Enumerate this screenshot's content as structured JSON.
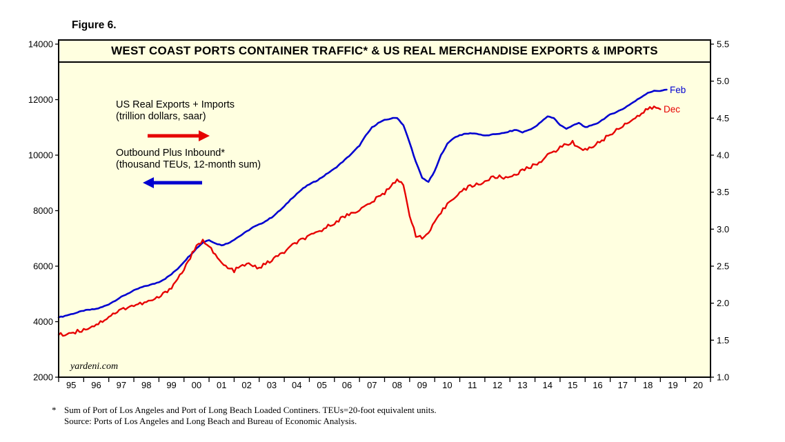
{
  "figure_label": "Figure 6.",
  "title": "WEST COAST PORTS CONTAINER TRAFFIC* & US REAL MERCHANDISE EXPORTS & IMPORTS",
  "watermark": "yardeni.com",
  "annotations": {
    "red_series_label_line1": "US Real Exports + Imports",
    "red_series_label_line2": "(trillion dollars, saar)",
    "blue_series_label_line1": "Outbound Plus Inbound*",
    "blue_series_label_line2": "(thousand TEUs, 12-month sum)",
    "blue_end_label": "Feb",
    "red_end_label": "Dec"
  },
  "footnotes": {
    "asterisk": "*",
    "line1": "Sum of Port of Los Angeles and Port of Long Beach Loaded Continers. TEUs=20-foot equivalent units.",
    "line2": "Source: Ports of Los Angeles and Long Beach and Bureau of Economic Analysis."
  },
  "colors": {
    "blue": "#0000D0",
    "red": "#E60000",
    "plot_bg": "#FFFFE0",
    "border": "#000000"
  },
  "chart_data": {
    "type": "line",
    "title": "WEST COAST PORTS CONTAINER TRAFFIC* & US REAL MERCHANDISE EXPORTS & IMPORTS",
    "grid": false,
    "x_axis": {
      "range": [
        1995,
        2021
      ],
      "tick_labels": [
        "95",
        "96",
        "97",
        "98",
        "99",
        "00",
        "01",
        "02",
        "03",
        "04",
        "05",
        "06",
        "07",
        "08",
        "09",
        "10",
        "11",
        "12",
        "13",
        "14",
        "15",
        "16",
        "17",
        "18",
        "19",
        "20"
      ]
    },
    "left_axis": {
      "label": "Outbound Plus Inbound (thousand TEUs, 12-month sum)",
      "range": [
        2000,
        14000
      ],
      "tick_labels": [
        "14000",
        "12000",
        "10000",
        "8000",
        "6000",
        "4000",
        "2000"
      ]
    },
    "right_axis": {
      "label": "US Real Exports + Imports (trillion dollars, saar)",
      "range": [
        1.0,
        5.5
      ],
      "tick_labels": [
        "5.5",
        "5.0",
        "4.5",
        "4.0",
        "3.5",
        "3.0",
        "2.5",
        "2.0",
        "1.5",
        "1.0"
      ]
    },
    "series": [
      {
        "name": "Outbound Plus Inbound* (thousand TEUs, 12-month sum)",
        "axis": "left",
        "color_key": "blue",
        "end_label": "Feb",
        "x_start": 1995.0,
        "x_step": 0.25,
        "values": [
          4150,
          4210,
          4270,
          4330,
          4400,
          4430,
          4460,
          4530,
          4630,
          4760,
          4890,
          5010,
          5120,
          5220,
          5290,
          5350,
          5430,
          5550,
          5710,
          5910,
          6160,
          6400,
          6640,
          6850,
          6950,
          6820,
          6760,
          6820,
          6960,
          7100,
          7250,
          7400,
          7500,
          7620,
          7760,
          7950,
          8150,
          8400,
          8610,
          8800,
          8950,
          9060,
          9200,
          9360,
          9510,
          9700,
          9900,
          10110,
          10350,
          10700,
          11000,
          11160,
          11260,
          11320,
          11350,
          11080,
          10450,
          9750,
          9180,
          9040,
          9420,
          10000,
          10400,
          10620,
          10720,
          10770,
          10790,
          10760,
          10700,
          10730,
          10770,
          10790,
          10860,
          10910,
          10820,
          10910,
          11010,
          11200,
          11400,
          11340,
          11080,
          10960,
          11060,
          11160,
          11010,
          11060,
          11160,
          11310,
          11460,
          11560,
          11660,
          11810,
          11950,
          12100,
          12250,
          12310,
          12320,
          12360
        ]
      },
      {
        "name": "US Real Exports + Imports (trillion dollars, saar)",
        "axis": "right",
        "color_key": "red",
        "end_label": "Dec",
        "x_start": 1995.0,
        "x_step": 0.25,
        "values": [
          1.57,
          1.58,
          1.6,
          1.62,
          1.64,
          1.68,
          1.71,
          1.76,
          1.82,
          1.87,
          1.91,
          1.95,
          1.97,
          1.99,
          2.01,
          2.04,
          2.08,
          2.14,
          2.22,
          2.33,
          2.46,
          2.62,
          2.76,
          2.84,
          2.79,
          2.64,
          2.54,
          2.47,
          2.44,
          2.49,
          2.53,
          2.5,
          2.48,
          2.53,
          2.58,
          2.64,
          2.69,
          2.76,
          2.82,
          2.87,
          2.9,
          2.94,
          2.99,
          3.04,
          3.09,
          3.14,
          3.19,
          3.23,
          3.26,
          3.31,
          3.37,
          3.43,
          3.49,
          3.59,
          3.68,
          3.58,
          3.2,
          2.92,
          2.87,
          2.95,
          3.08,
          3.22,
          3.34,
          3.43,
          3.49,
          3.55,
          3.59,
          3.61,
          3.64,
          3.69,
          3.71,
          3.69,
          3.71,
          3.75,
          3.79,
          3.83,
          3.87,
          3.93,
          3.99,
          4.05,
          4.1,
          4.15,
          4.17,
          4.11,
          4.07,
          4.11,
          4.16,
          4.22,
          4.28,
          4.34,
          4.4,
          4.46,
          4.5,
          4.56,
          4.62,
          4.65,
          4.62
        ]
      }
    ]
  }
}
